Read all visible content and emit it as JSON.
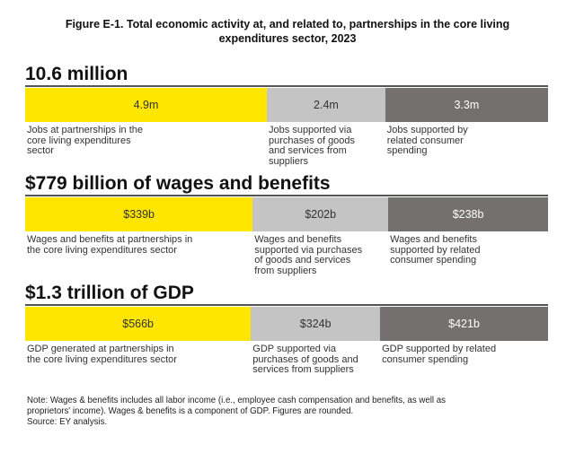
{
  "title_line1": "Figure E-1. Total economic activity at, and related to, partnerships in the core living",
  "title_line2": "expenditures sector, 2023",
  "chart_data": {
    "type": "bar",
    "orientation": "horizontal-stacked",
    "colors": {
      "direct": "#ffe600",
      "suppliers": "#c4c4c4",
      "consumer": "#747070"
    },
    "groups": [
      {
        "headline": "10.6 million",
        "total": 10.6,
        "unit": "million",
        "segments": [
          {
            "value": 4.9,
            "label": "4.9m",
            "desc": [
              "Jobs at partnerships in the",
              "core living expenditures",
              "sector"
            ]
          },
          {
            "value": 2.4,
            "label": "2.4m",
            "desc": [
              "Jobs supported via",
              "purchases of goods",
              "and services from",
              "suppliers"
            ]
          },
          {
            "value": 3.3,
            "label": "3.3m",
            "desc": [
              "Jobs supported by",
              "related consumer",
              "spending"
            ]
          }
        ]
      },
      {
        "headline": "$779 billion of wages and benefits",
        "total": 779,
        "unit": "billion",
        "segments": [
          {
            "value": 339,
            "label": "$339b",
            "desc": [
              "Wages and benefits at partnerships in",
              "the core living expenditures sector"
            ]
          },
          {
            "value": 202,
            "label": "$202b",
            "desc": [
              "Wages and benefits",
              "supported via purchases",
              "of goods and services",
              "from suppliers"
            ]
          },
          {
            "value": 238,
            "label": "$238b",
            "desc": [
              "Wages and benefits",
              "supported by related",
              "consumer spending"
            ]
          }
        ]
      },
      {
        "headline": "$1.3 trillion of GDP",
        "total": 1311,
        "unit": "billion",
        "segments": [
          {
            "value": 566,
            "label": "$566b",
            "desc": [
              "GDP generated at partnerships in",
              "the core living expenditures sector"
            ]
          },
          {
            "value": 324,
            "label": "$324b",
            "desc": [
              "GDP supported via",
              "purchases of goods and",
              "services from suppliers"
            ]
          },
          {
            "value": 421,
            "label": "$421b",
            "desc": [
              "GDP supported by related",
              "consumer spending"
            ]
          }
        ]
      }
    ]
  },
  "note_line1": "Note: Wages & benefits includes all labor income (i.e., employee cash compensation and benefits, as well as",
  "note_line2": "proprietors' income). Wages & benefits is a component of GDP. Figures are rounded.",
  "note_line3": "Source: EY analysis."
}
